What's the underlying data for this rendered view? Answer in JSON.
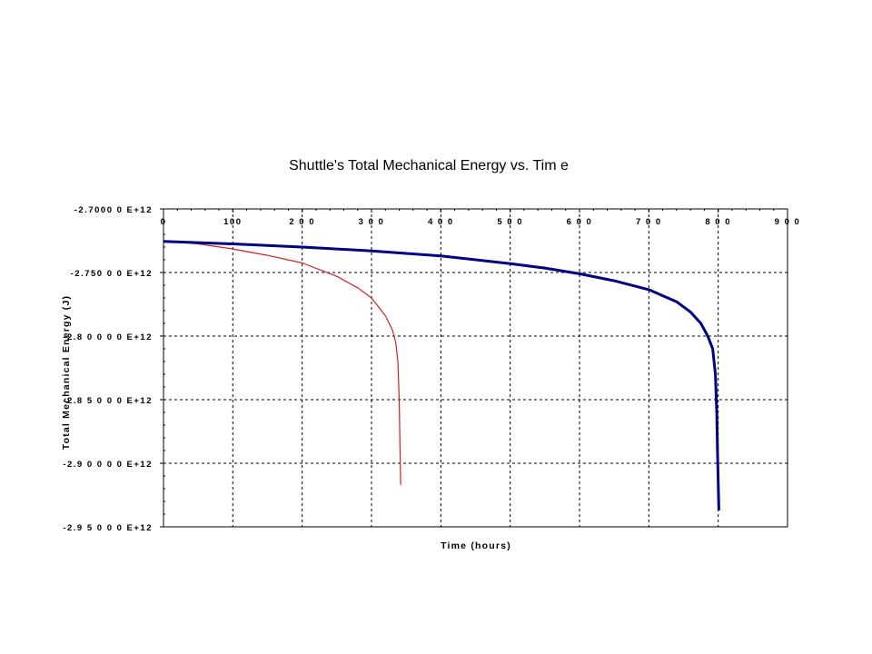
{
  "chart_data": {
    "type": "line",
    "title": "Shuttle's Total Mechanical Energy vs. Tim e",
    "xlabel": "Time (hours)",
    "ylabel": "Total Mechanical Energy (J)",
    "xlim": [
      0,
      900
    ],
    "ylim": [
      -2950000000000.0,
      -2700000000000.0
    ],
    "x_ticks": [
      0,
      100,
      200,
      300,
      400,
      500,
      600,
      700,
      800,
      900
    ],
    "x_tick_labels": [
      "0",
      "100",
      "2 0 0",
      "3 0 0",
      "4 0 0",
      "5 0 0",
      "6 0 0",
      "7 0 0",
      "8 0 0",
      "9 0 0"
    ],
    "y_ticks": [
      -2700000000000.0,
      -2750000000000.0,
      -2800000000000.0,
      -2850000000000.0,
      -2900000000000.0,
      -2950000000000.0
    ],
    "y_tick_labels": [
      "-2.7000 0 E+12",
      "-2.750 0 0 E+12",
      "-2.8 0 0 0 0 E+12",
      "-2.8 5 0 0 0 E+12",
      "-2.9 0 0 0 0 E+12",
      "-2.9 5 0 0 0 E+12"
    ],
    "x_axis_position": "top",
    "grid": true,
    "legend": "none",
    "series": [
      {
        "color": "#cc2222",
        "stroke": "thin",
        "x": [
          0,
          50,
          100,
          150,
          200,
          250,
          280,
          300,
          320,
          330,
          335,
          338,
          340,
          341,
          342
        ],
        "y": [
          -2725000000000.0,
          -2727500000000.0,
          -2731500000000.0,
          -2736500000000.0,
          -2742500000000.0,
          -2753000000000.0,
          -2762000000000.0,
          -2770000000000.0,
          -2784000000000.0,
          -2795000000000.0,
          -2805000000000.0,
          -2820000000000.0,
          -2850000000000.0,
          -2885000000000.0,
          -2917000000000.0
        ]
      },
      {
        "color": "#000080",
        "stroke": "thick",
        "x": [
          0,
          100,
          200,
          300,
          400,
          500,
          550,
          600,
          650,
          700,
          740,
          760,
          775,
          785,
          792,
          796,
          798,
          799,
          800,
          801
        ],
        "y": [
          -2725500000000.0,
          -2727500000000.0,
          -2730000000000.0,
          -2733000000000.0,
          -2737000000000.0,
          -2743000000000.0,
          -2746500000000.0,
          -2751000000000.0,
          -2756500000000.0,
          -2763500000000.0,
          -2773000000000.0,
          -2781000000000.0,
          -2790000000000.0,
          -2800000000000.0,
          -2810000000000.0,
          -2830000000000.0,
          -2860000000000.0,
          -2890000000000.0,
          -2915000000000.0,
          -2937000000000.0
        ]
      }
    ]
  }
}
